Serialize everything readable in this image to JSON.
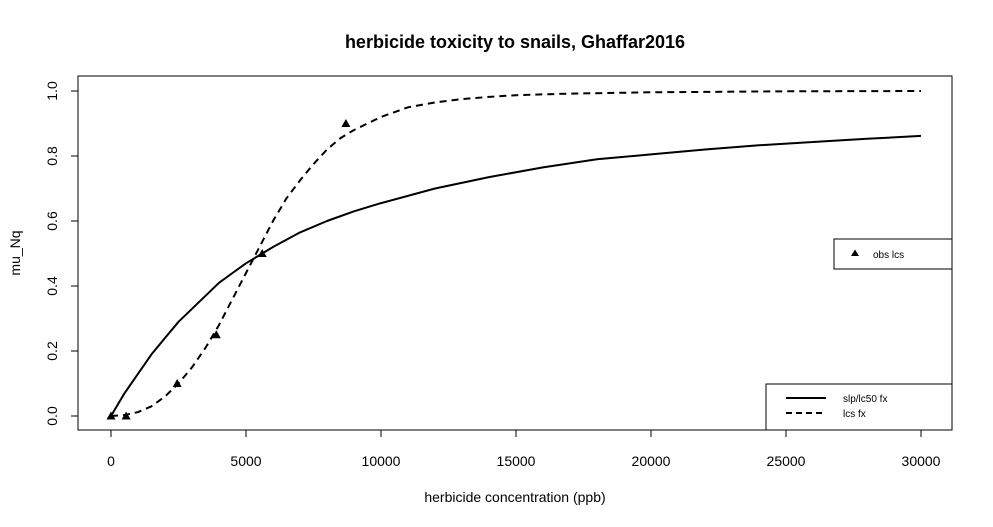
{
  "chart_data": {
    "type": "line",
    "title": "herbicide toxicity to snails, Ghaffar2016",
    "xlabel": "herbicide concentration (ppb)",
    "ylabel": "mu_Nq",
    "xlim": [
      0,
      30000
    ],
    "ylim": [
      0,
      1
    ],
    "x_ticks": [
      "0",
      "5000",
      "10000",
      "15000",
      "20000",
      "25000",
      "30000"
    ],
    "y_ticks": [
      "0.0",
      "0.2",
      "0.4",
      "0.6",
      "0.8",
      "1.0"
    ],
    "grid": false,
    "points_series": {
      "name": "obs lcs",
      "x": [
        0,
        560,
        2450,
        3900,
        5600,
        8700
      ],
      "y": [
        0.0,
        0.0,
        0.1,
        0.25,
        0.5,
        0.9
      ]
    },
    "series": [
      {
        "name": "slp/lc50 fx",
        "style": "solid",
        "x": [
          0,
          500,
          1000,
          1500,
          2000,
          2500,
          3000,
          3500,
          4000,
          4500,
          5000,
          6000,
          7000,
          8000,
          9000,
          10000,
          12000,
          14000,
          16000,
          18000,
          20000,
          22000,
          24000,
          26000,
          28000,
          30000
        ],
        "y": [
          0.0,
          0.07,
          0.13,
          0.19,
          0.24,
          0.29,
          0.33,
          0.37,
          0.41,
          0.44,
          0.47,
          0.52,
          0.565,
          0.6,
          0.63,
          0.655,
          0.7,
          0.735,
          0.765,
          0.79,
          0.805,
          0.82,
          0.833,
          0.843,
          0.853,
          0.862
        ]
      },
      {
        "name": "lcs fx",
        "style": "dashed",
        "x": [
          0,
          500,
          1000,
          1500,
          2000,
          2500,
          3000,
          3500,
          4000,
          4500,
          5000,
          5500,
          6000,
          6500,
          7000,
          7500,
          8000,
          8500,
          9000,
          10000,
          11000,
          12000,
          13000,
          14000,
          15000,
          17000,
          20000,
          25000,
          30000
        ],
        "y": [
          0.0,
          0.003,
          0.012,
          0.03,
          0.06,
          0.1,
          0.15,
          0.21,
          0.28,
          0.36,
          0.44,
          0.52,
          0.6,
          0.67,
          0.725,
          0.775,
          0.82,
          0.855,
          0.88,
          0.92,
          0.95,
          0.965,
          0.975,
          0.982,
          0.987,
          0.992,
          0.996,
          0.999,
          1.0
        ]
      }
    ],
    "legends": [
      {
        "position": "right",
        "entries": [
          "obs lcs"
        ]
      },
      {
        "position": "bottom-right",
        "entries": [
          "slp/lc50 fx",
          "lcs fx"
        ]
      }
    ]
  }
}
